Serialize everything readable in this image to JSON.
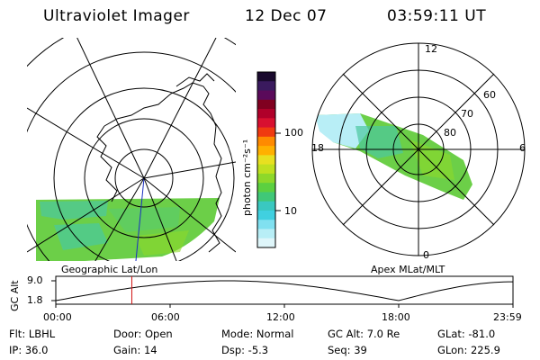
{
  "header": {
    "instrument": "Ultraviolet Imager",
    "date": "12 Dec 07",
    "time": "03:59:11 UT"
  },
  "left_panel": {
    "label": "Geographic Lat/Lon"
  },
  "right_panel": {
    "label": "Apex MLat/MLT",
    "mlt_labels": {
      "top": "12",
      "right": "6",
      "bottom": "0",
      "left": "18"
    },
    "mlat_labels": [
      "60",
      "70",
      "80"
    ]
  },
  "colorbar": {
    "unit_label": "photon cm⁻²s⁻¹",
    "ticks": [
      "100",
      "10"
    ],
    "colors": [
      "#1a0a2e",
      "#3a1a5e",
      "#5a0a5a",
      "#800020",
      "#b0002a",
      "#d81030",
      "#f03a10",
      "#ff8a00",
      "#ffb000",
      "#e8e020",
      "#c0e020",
      "#8ed82a",
      "#5cd040",
      "#40c878",
      "#3ac8c0",
      "#40d0e0",
      "#80e0f0",
      "#b8eef6",
      "#dff6fa"
    ]
  },
  "altitude_plot": {
    "ylabel": "GC Alt",
    "yticks": [
      "9.0",
      "1.8"
    ],
    "xticks": [
      "00:00",
      "06:00",
      "12:00",
      "18:00",
      "23:59"
    ],
    "current_time_hours": 3.99,
    "line_color": "#000000",
    "marker_color": "#d01010"
  },
  "status": {
    "filter": "Flt: LBHL",
    "ip": "IP: 36.0",
    "door": "Door: Open",
    "gain": "Gain: 14",
    "mode": "Mode: Normal",
    "dsp": "Dsp:    -5.3",
    "gc_alt": "GC Alt: 7.0 Re",
    "seq": "Seq: 39",
    "glat": "GLat: -81.0",
    "glon": "GLon: 225.9"
  },
  "colors": {
    "aurora_green": "#7ad44a",
    "aurora_cyan": "#4cc8a0",
    "aurora_light": "#b8eef6"
  }
}
